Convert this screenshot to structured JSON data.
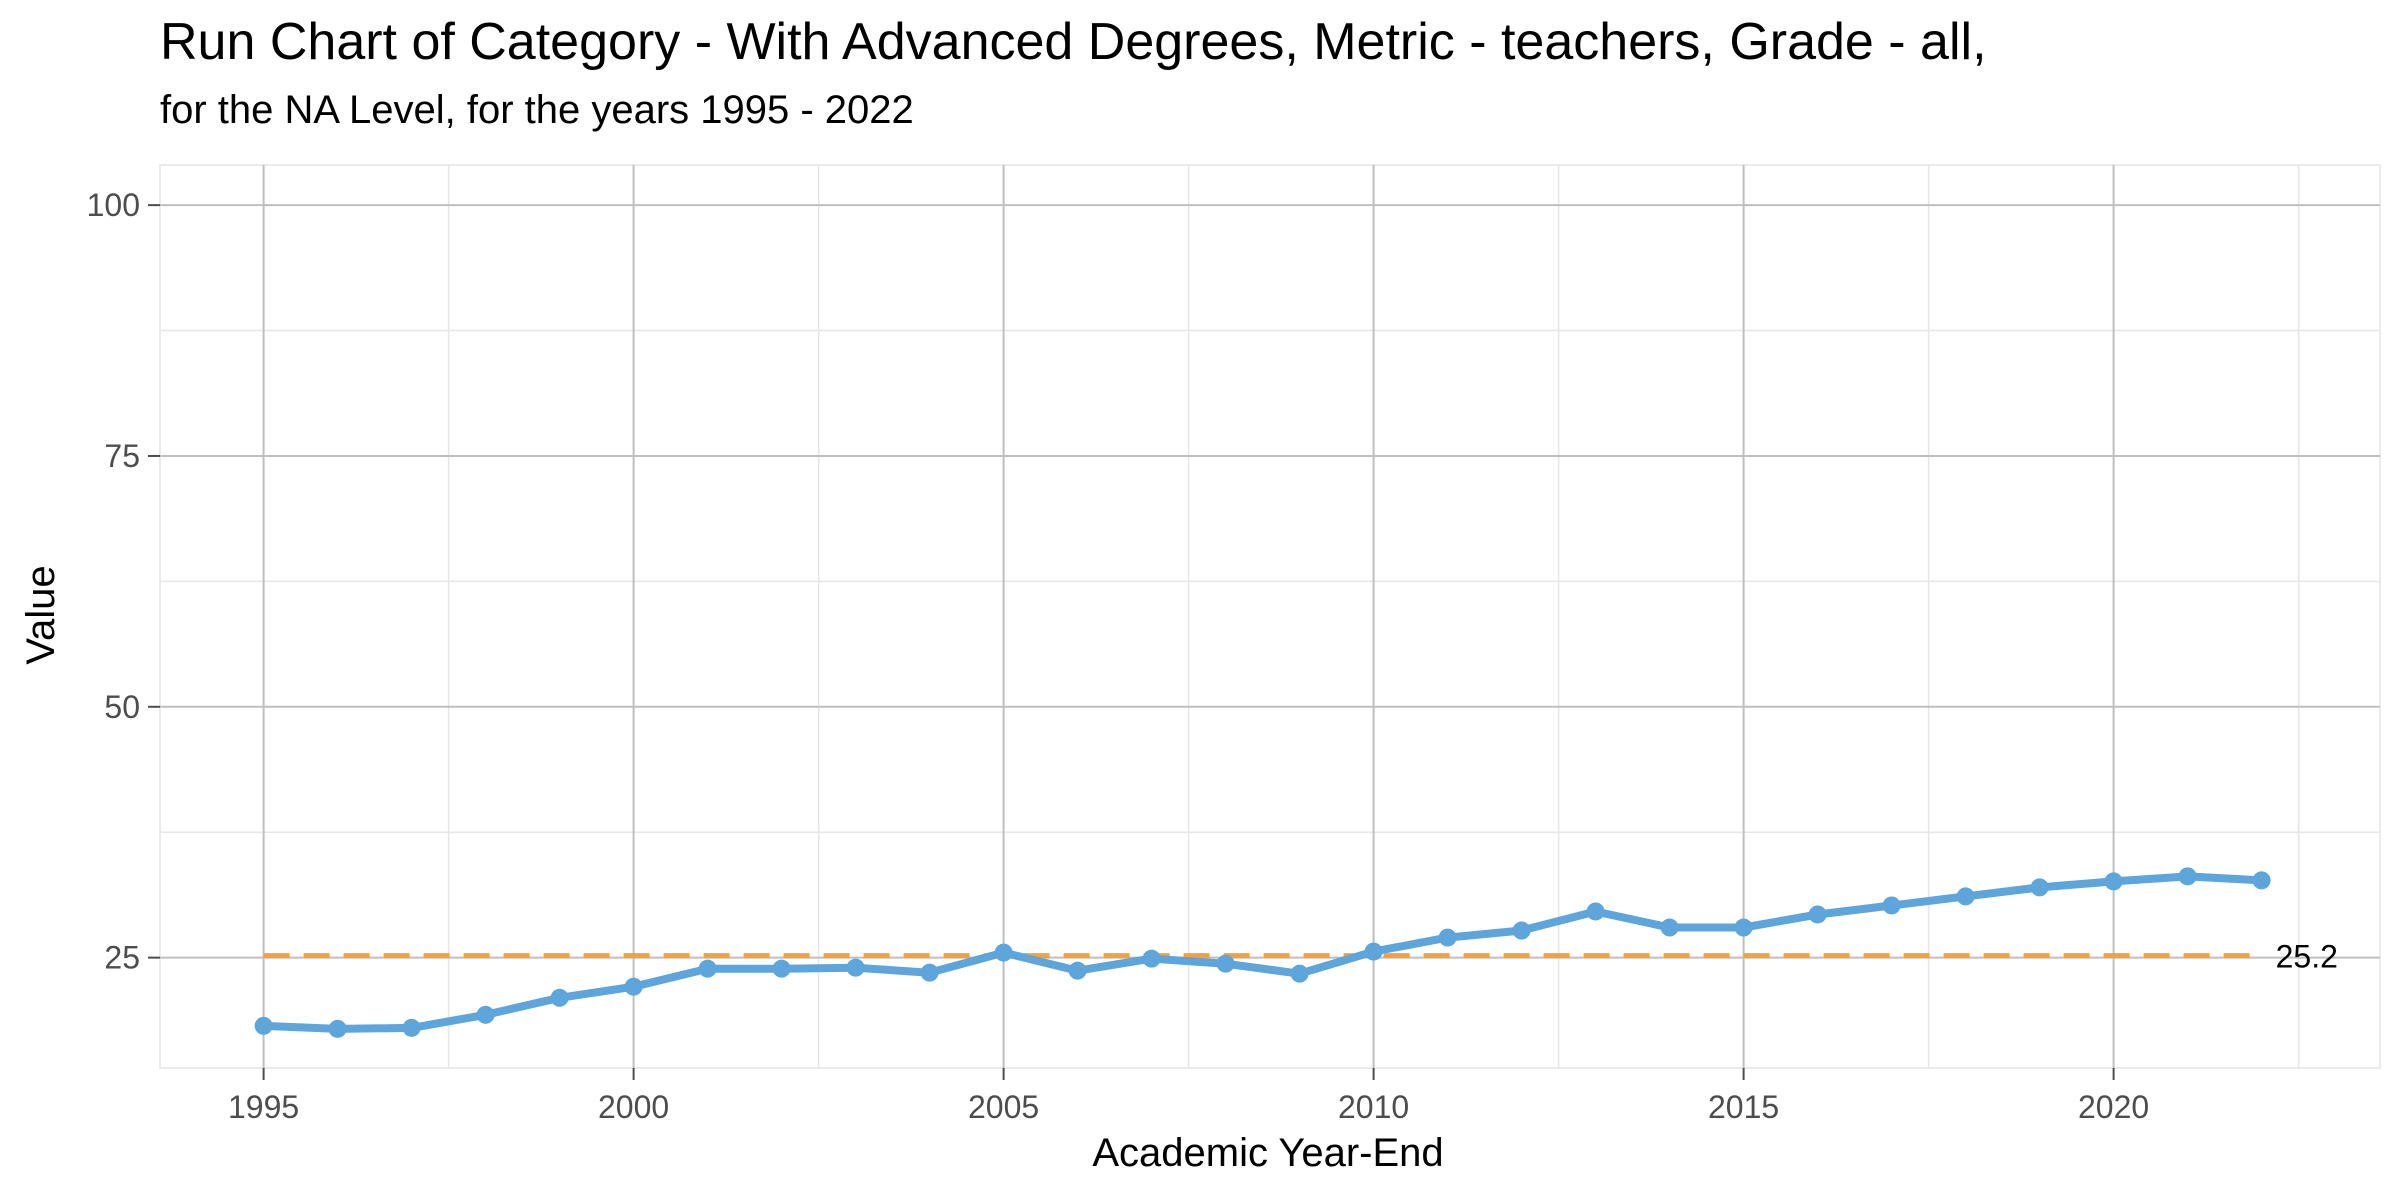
{
  "chart_data": {
    "type": "line",
    "title": "Run Chart of Category -  With Advanced Degrees, Metric - teachers, Grade - all,",
    "subtitle": "for the NA Level, for the years 1995 - 2022",
    "xlabel": "Academic Year-End",
    "ylabel": "Value",
    "xlim": [
      1993.6,
      2023.6
    ],
    "ylim": [
      14,
      104
    ],
    "x_ticks": [
      1995,
      2000,
      2005,
      2010,
      2015,
      2020
    ],
    "y_ticks": [
      25,
      50,
      75,
      100
    ],
    "grid": true,
    "series": [
      {
        "color": "#5DA5DA",
        "x": [
          1995,
          1996,
          1997,
          1998,
          1999,
          2000,
          2001,
          2002,
          2003,
          2004,
          2005,
          2006,
          2007,
          2008,
          2009,
          2010,
          2011,
          2012,
          2013,
          2014,
          2015,
          2016,
          2017,
          2018,
          2019,
          2020,
          2021,
          2022
        ],
        "values": [
          18.2,
          17.9,
          18.0,
          19.3,
          21.0,
          22.1,
          23.9,
          23.9,
          24.0,
          23.5,
          25.5,
          23.7,
          24.9,
          24.4,
          23.4,
          25.6,
          27.0,
          27.7,
          29.6,
          28.0,
          28.0,
          29.3,
          30.2,
          31.1,
          32.0,
          32.6,
          33.1,
          32.7
        ]
      }
    ],
    "reference_line": {
      "value": 25.2,
      "label": "25.2",
      "color": "#F5A03C",
      "x_range": [
        1995,
        2022
      ]
    }
  }
}
